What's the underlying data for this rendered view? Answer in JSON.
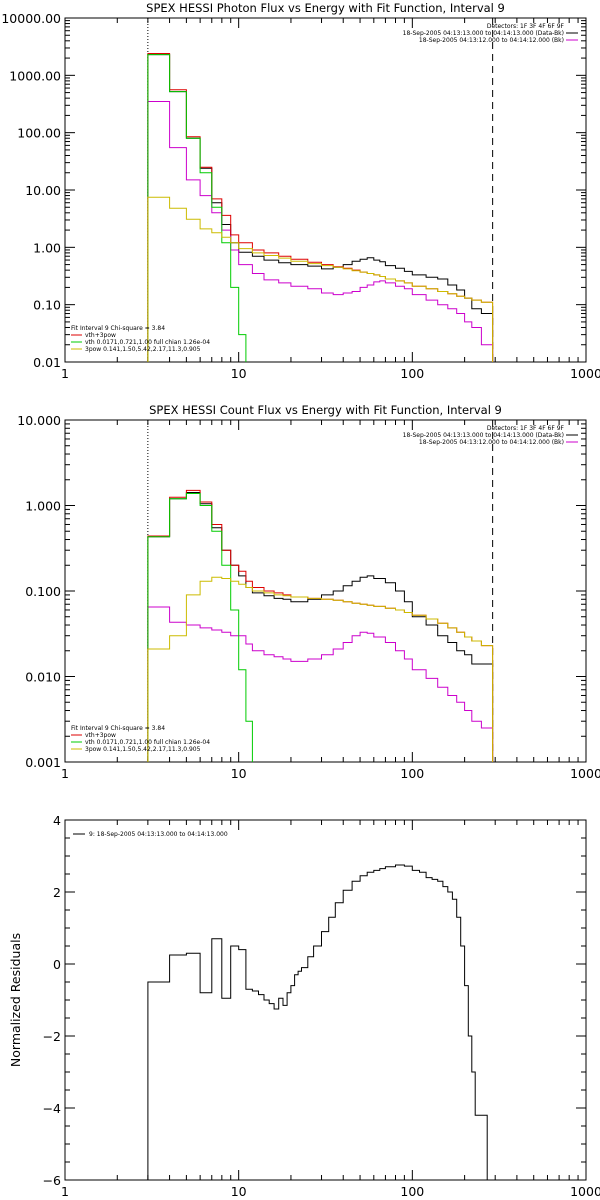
{
  "chart_data": [
    {
      "type": "line",
      "title": "SPEX HESSI Photon Flux vs Energy with Fit Function, Interval 9",
      "xscale": "log",
      "yscale": "log",
      "xlim": [
        1,
        1000
      ],
      "ylim": [
        0.01,
        10000
      ],
      "xticks": [
        {
          "v": 1,
          "label": "1"
        },
        {
          "v": 10,
          "label": "10"
        },
        {
          "v": 100,
          "label": "100"
        },
        {
          "v": 1000,
          "label": "1000"
        }
      ],
      "yticks": [
        {
          "v": 0.01,
          "label": "0.01"
        },
        {
          "v": 0.1,
          "label": "0.10"
        },
        {
          "v": 1,
          "label": "1.00"
        },
        {
          "v": 10,
          "label": "10.00"
        },
        {
          "v": 100,
          "label": "100.00"
        },
        {
          "v": 1000,
          "label": "1000.00"
        },
        {
          "v": 10000,
          "label": "10000.00"
        }
      ],
      "vlines": [
        {
          "x": 3,
          "style": "dotted"
        },
        {
          "x": 290,
          "style": "dashed"
        }
      ],
      "legend_topright": [
        {
          "text": "Detectors: 1F 3F 4F 6F 9F",
          "color": "#000000",
          "swatch": false
        },
        {
          "text": "18-Sep-2005 04:13:13.000 to 04:14:13.000 (Data-Bk)",
          "color": "#000000",
          "swatch": true
        },
        {
          "text": "18-Sep-2005 04:13:12.000 to 04:14:12.000 (Bk)",
          "color": "#cc00cc",
          "swatch": true
        }
      ],
      "legend_bottomleft": [
        {
          "text": "Fit Interval 9   Chi-square = 3.84",
          "color": "#000000",
          "swatch": false
        },
        {
          "text": "vth+3pow",
          "color": "#dd0000",
          "swatch": true
        },
        {
          "text": "vth 0.0171,0.721,1.00  full chian 1.26e-04",
          "color": "#00cc00",
          "swatch": true
        },
        {
          "text": "3pow 0.141,1.50,5.42,2.17,11.3,0.905",
          "color": "#ccbb00",
          "swatch": true
        }
      ],
      "series": [
        {
          "color": "#000000",
          "start": 3,
          "x": [
            4,
            5,
            6,
            7,
            8,
            9,
            10,
            12,
            14,
            17,
            20,
            25,
            30,
            35,
            40,
            45,
            50,
            55,
            60,
            65,
            70,
            80,
            90,
            100,
            120,
            140,
            160,
            180,
            200,
            220,
            250,
            290
          ],
          "y": [
            2300,
            520,
            80,
            24,
            6,
            2.5,
            1.2,
            0.82,
            0.7,
            0.6,
            0.54,
            0.5,
            0.47,
            0.42,
            0.45,
            0.5,
            0.57,
            0.62,
            0.66,
            0.6,
            0.56,
            0.48,
            0.43,
            0.38,
            0.33,
            0.3,
            0.28,
            0.22,
            0.18,
            0.13,
            0.085,
            0.07
          ]
        },
        {
          "color": "#cc00cc",
          "start": 3,
          "x": [
            4,
            5,
            6,
            7,
            8,
            9,
            10,
            12,
            14,
            17,
            20,
            25,
            30,
            35,
            40,
            45,
            50,
            55,
            60,
            65,
            70,
            80,
            90,
            100,
            120,
            140,
            160,
            180,
            200,
            220,
            250,
            290
          ],
          "y": [
            350,
            55,
            15,
            8,
            4,
            2,
            0.9,
            0.5,
            0.35,
            0.27,
            0.24,
            0.21,
            0.19,
            0.16,
            0.15,
            0.16,
            0.17,
            0.2,
            0.22,
            0.25,
            0.26,
            0.24,
            0.21,
            0.19,
            0.15,
            0.12,
            0.1,
            0.085,
            0.07,
            0.05,
            0.04,
            0.02
          ]
        },
        {
          "color": "#dd0000",
          "start": 3,
          "x": [
            4,
            5,
            6,
            7,
            8,
            9,
            10,
            12,
            14,
            17,
            20,
            25,
            30,
            35,
            40,
            45,
            50,
            55,
            60,
            65,
            70,
            80,
            90,
            100,
            120,
            140,
            160,
            180,
            200,
            220,
            250,
            290
          ],
          "y": [
            2400,
            560,
            85,
            25,
            7,
            3.6,
            1.65,
            1.2,
            0.9,
            0.8,
            0.7,
            0.62,
            0.55,
            0.5,
            0.46,
            0.43,
            0.4,
            0.37,
            0.35,
            0.33,
            0.31,
            0.28,
            0.26,
            0.24,
            0.21,
            0.19,
            0.17,
            0.155,
            0.14,
            0.13,
            0.12,
            0.11
          ]
        },
        {
          "color": "#00cc00",
          "start": 3,
          "x": [
            4,
            5,
            6,
            7,
            8,
            9,
            10,
            11,
            12
          ],
          "y": [
            2300,
            520,
            80,
            20,
            5,
            1.2,
            0.2,
            0.03,
            0.006
          ]
        },
        {
          "color": "#ccbb00",
          "start": 3,
          "x": [
            4,
            5,
            6,
            7,
            8,
            9,
            10,
            12,
            14,
            17,
            20,
            25,
            30,
            35,
            40,
            45,
            50,
            55,
            60,
            65,
            70,
            80,
            90,
            100,
            120,
            140,
            160,
            180,
            200,
            220,
            250,
            290
          ],
          "y": [
            7.5,
            4.8,
            3.1,
            2.1,
            1.8,
            1.5,
            1.2,
            0.95,
            0.8,
            0.72,
            0.65,
            0.57,
            0.52,
            0.48,
            0.45,
            0.42,
            0.39,
            0.37,
            0.35,
            0.33,
            0.31,
            0.28,
            0.26,
            0.24,
            0.21,
            0.19,
            0.17,
            0.155,
            0.14,
            0.13,
            0.12,
            0.11
          ]
        }
      ]
    },
    {
      "type": "line",
      "title": "SPEX HESSI Count Flux vs Energy with Fit Function, Interval 9",
      "xscale": "log",
      "yscale": "log",
      "xlim": [
        1,
        1000
      ],
      "ylim": [
        0.001,
        10
      ],
      "xticks": [
        {
          "v": 1,
          "label": "1"
        },
        {
          "v": 10,
          "label": "10"
        },
        {
          "v": 100,
          "label": "100"
        },
        {
          "v": 1000,
          "label": "1000"
        }
      ],
      "yticks": [
        {
          "v": 0.001,
          "label": "0.001"
        },
        {
          "v": 0.01,
          "label": "0.010"
        },
        {
          "v": 0.1,
          "label": "0.100"
        },
        {
          "v": 1,
          "label": "1.000"
        },
        {
          "v": 10,
          "label": "10.000"
        }
      ],
      "vlines": [
        {
          "x": 3,
          "style": "dotted"
        },
        {
          "x": 290,
          "style": "dashed"
        }
      ],
      "legend_topright": [
        {
          "text": "Detectors: 1F 3F 4F 6F 9F",
          "color": "#000000",
          "swatch": false
        },
        {
          "text": "18-Sep-2005 04:13:13.000 to 04:14:13.000 (Data-Bk)",
          "color": "#000000",
          "swatch": true
        },
        {
          "text": "18-Sep-2005 04:13:12.000 to 04:14:12.000 (Bk)",
          "color": "#cc00cc",
          "swatch": true
        }
      ],
      "legend_bottomleft": [
        {
          "text": "Fit Interval 9   Chi-square = 3.84",
          "color": "#000000",
          "swatch": false
        },
        {
          "text": "vth+3pow",
          "color": "#dd0000",
          "swatch": true
        },
        {
          "text": "vth 0.0171,0.721,1.00  full chian 1.26e-04",
          "color": "#00cc00",
          "swatch": true
        },
        {
          "text": "3pow 0.141,1.50,5.42,2.17,11.3,0.905",
          "color": "#ccbb00",
          "swatch": true
        }
      ],
      "series": [
        {
          "color": "#000000",
          "start": 3,
          "x": [
            4,
            5,
            6,
            7,
            8,
            9,
            10,
            11,
            12,
            14,
            16,
            18,
            20,
            25,
            30,
            35,
            40,
            45,
            50,
            55,
            60,
            70,
            80,
            90,
            100,
            120,
            140,
            160,
            180,
            200,
            220,
            250,
            290
          ],
          "y": [
            0.43,
            1.2,
            1.42,
            1.05,
            0.55,
            0.3,
            0.2,
            0.15,
            0.11,
            0.095,
            0.088,
            0.082,
            0.08,
            0.075,
            0.08,
            0.09,
            0.1,
            0.115,
            0.13,
            0.145,
            0.15,
            0.14,
            0.125,
            0.1,
            0.075,
            0.05,
            0.04,
            0.03,
            0.025,
            0.02,
            0.018,
            0.014,
            0.014
          ]
        },
        {
          "color": "#cc00cc",
          "start": 3,
          "x": [
            4,
            5,
            6,
            7,
            8,
            9,
            10,
            11,
            12,
            14,
            16,
            18,
            20,
            25,
            30,
            35,
            40,
            45,
            50,
            55,
            60,
            70,
            80,
            90,
            100,
            120,
            140,
            160,
            180,
            200,
            220,
            250,
            290
          ],
          "y": [
            0.065,
            0.043,
            0.04,
            0.037,
            0.035,
            0.033,
            0.03,
            0.03,
            0.024,
            0.02,
            0.018,
            0.017,
            0.016,
            0.015,
            0.016,
            0.018,
            0.021,
            0.025,
            0.03,
            0.033,
            0.032,
            0.029,
            0.025,
            0.02,
            0.016,
            0.012,
            0.0095,
            0.0075,
            0.006,
            0.005,
            0.004,
            0.003,
            0.0025
          ]
        },
        {
          "color": "#dd0000",
          "start": 3,
          "x": [
            4,
            5,
            6,
            7,
            8,
            9,
            10,
            11,
            12,
            14,
            16,
            18,
            20,
            25,
            30,
            35,
            40,
            45,
            50,
            55,
            60,
            70,
            80,
            90,
            100,
            120,
            140,
            160,
            180,
            200,
            220,
            250,
            290
          ],
          "y": [
            0.44,
            1.25,
            1.5,
            1.1,
            0.6,
            0.3,
            0.2,
            0.17,
            0.13,
            0.11,
            0.1,
            0.095,
            0.09,
            0.085,
            0.082,
            0.08,
            0.078,
            0.075,
            0.072,
            0.07,
            0.068,
            0.066,
            0.063,
            0.06,
            0.056,
            0.052,
            0.047,
            0.042,
            0.037,
            0.033,
            0.029,
            0.026,
            0.023
          ]
        },
        {
          "color": "#00cc00",
          "start": 3,
          "x": [
            4,
            5,
            6,
            7,
            8,
            9,
            10,
            11,
            12
          ],
          "y": [
            0.43,
            1.2,
            1.38,
            1.0,
            0.5,
            0.2,
            0.06,
            0.012,
            0.003
          ]
        },
        {
          "color": "#ccbb00",
          "start": 3,
          "x": [
            4,
            5,
            6,
            7,
            8,
            9,
            10,
            11,
            12,
            14,
            16,
            18,
            20,
            25,
            30,
            35,
            40,
            45,
            50,
            55,
            60,
            70,
            80,
            90,
            100,
            120,
            140,
            160,
            180,
            200,
            220,
            250,
            290
          ],
          "y": [
            0.021,
            0.03,
            0.09,
            0.13,
            0.145,
            0.14,
            0.13,
            0.12,
            0.11,
            0.1,
            0.095,
            0.09,
            0.088,
            0.085,
            0.082,
            0.08,
            0.078,
            0.075,
            0.072,
            0.07,
            0.068,
            0.066,
            0.063,
            0.06,
            0.056,
            0.052,
            0.047,
            0.042,
            0.037,
            0.033,
            0.029,
            0.026,
            0.023
          ]
        }
      ]
    },
    {
      "type": "line",
      "title": "",
      "ylabel": "Normalized Residuals",
      "xscale": "log",
      "yscale": "linear",
      "xlim": [
        1,
        1000
      ],
      "ylim": [
        -6,
        4
      ],
      "xticks": [
        {
          "v": 1,
          "label": "1"
        },
        {
          "v": 10,
          "label": "10"
        },
        {
          "v": 100,
          "label": "100"
        },
        {
          "v": 1000,
          "label": "1000"
        }
      ],
      "yticks": [
        {
          "v": -6,
          "label": "−6"
        },
        {
          "v": -4,
          "label": "−4"
        },
        {
          "v": -2,
          "label": "−2"
        },
        {
          "v": 0,
          "label": "0"
        },
        {
          "v": 2,
          "label": "2"
        },
        {
          "v": 4,
          "label": "4"
        }
      ],
      "vlines": [],
      "legend_topleft": [
        {
          "text": "9: 18-Sep-2005 04:13:13.000 to 04:14:13.000",
          "color": "#000000",
          "swatch": true
        }
      ],
      "series": [
        {
          "color": "#000000",
          "start": 3,
          "startFrom": -6,
          "endTo": -6,
          "x": [
            4,
            5,
            6,
            7,
            8,
            9,
            10,
            11,
            12,
            13,
            14,
            15,
            16,
            17,
            18,
            19,
            20,
            21,
            22,
            23,
            25,
            27,
            30,
            33,
            36,
            40,
            45,
            50,
            55,
            60,
            65,
            70,
            80,
            90,
            100,
            110,
            120,
            130,
            140,
            150,
            160,
            170,
            180,
            190,
            200,
            210,
            220,
            230,
            250,
            270,
            290
          ],
          "y": [
            -0.5,
            0.25,
            0.3,
            -0.8,
            0.7,
            -0.95,
            0.5,
            0.4,
            -0.7,
            -0.75,
            -0.85,
            -1.0,
            -1.1,
            -1.25,
            -0.95,
            -1.15,
            -0.8,
            -0.6,
            -0.3,
            -0.2,
            -0.1,
            0.2,
            0.5,
            0.9,
            1.3,
            1.7,
            2.05,
            2.3,
            2.45,
            2.55,
            2.6,
            2.65,
            2.7,
            2.75,
            2.72,
            2.6,
            2.55,
            2.4,
            2.35,
            2.3,
            2.15,
            2.0,
            1.8,
            1.3,
            0.5,
            -0.6,
            -2.0,
            -3.0,
            -4.2,
            -4.2,
            -6
          ]
        }
      ]
    }
  ]
}
